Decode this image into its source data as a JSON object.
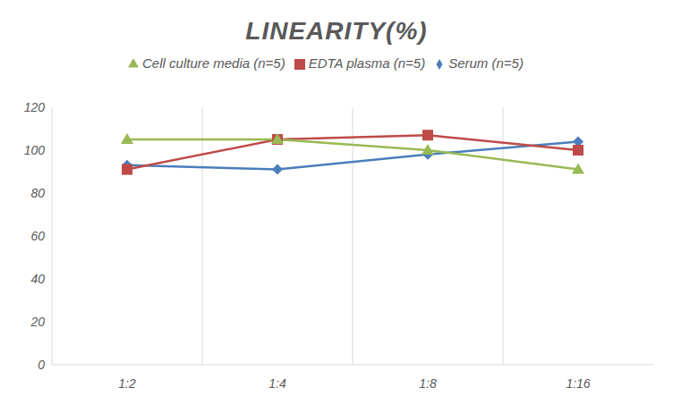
{
  "chart_data": {
    "type": "line",
    "title": "LINEARITY(%)",
    "categories": [
      "1:2",
      "1:4",
      "1:8",
      "1:16"
    ],
    "series": [
      {
        "name": "Serum (n=5)",
        "color": "#4a7ebb",
        "marker": "diamond",
        "values": [
          93,
          91,
          98,
          104
        ]
      },
      {
        "name": "EDTA plasma (n=5)",
        "color": "#be4b48",
        "marker": "square",
        "values": [
          91,
          105,
          107,
          100
        ]
      },
      {
        "name": "Cell culture media (n=5)",
        "color": "#98b954",
        "marker": "triangle",
        "values": [
          105,
          105,
          100,
          91
        ]
      }
    ],
    "ylim": [
      0,
      120
    ],
    "yticks": [
      0,
      20,
      40,
      60,
      80,
      100,
      120
    ],
    "grid": true,
    "legend": "top"
  }
}
